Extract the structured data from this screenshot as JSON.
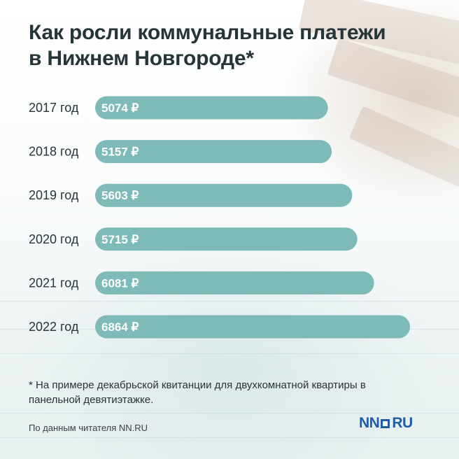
{
  "title": "Как росли коммунальные платежи\nв Нижнем Новгороде*",
  "chart_data": {
    "type": "bar",
    "orientation": "horizontal",
    "categories": [
      "2017 год",
      "2018 год",
      "2019 год",
      "2020 год",
      "2021 год",
      "2022 год"
    ],
    "values": [
      5074,
      5157,
      5603,
      5715,
      6081,
      6864
    ],
    "value_labels": [
      "5074 ₽",
      "5157 ₽",
      "5603 ₽",
      "5715 ₽",
      "6081 ₽",
      "6864 ₽"
    ],
    "unit": "₽",
    "bar_color": "#7ebab8",
    "grid": false,
    "legend": "none"
  },
  "footnote": "* На примере декабрьской квитанции для двухкомнатной квартиры в панельной девятиэтажке.",
  "source": "По данным читателя NN.RU",
  "logo": {
    "left": "NN",
    "right": "RU",
    "color": "#1f5da8"
  }
}
